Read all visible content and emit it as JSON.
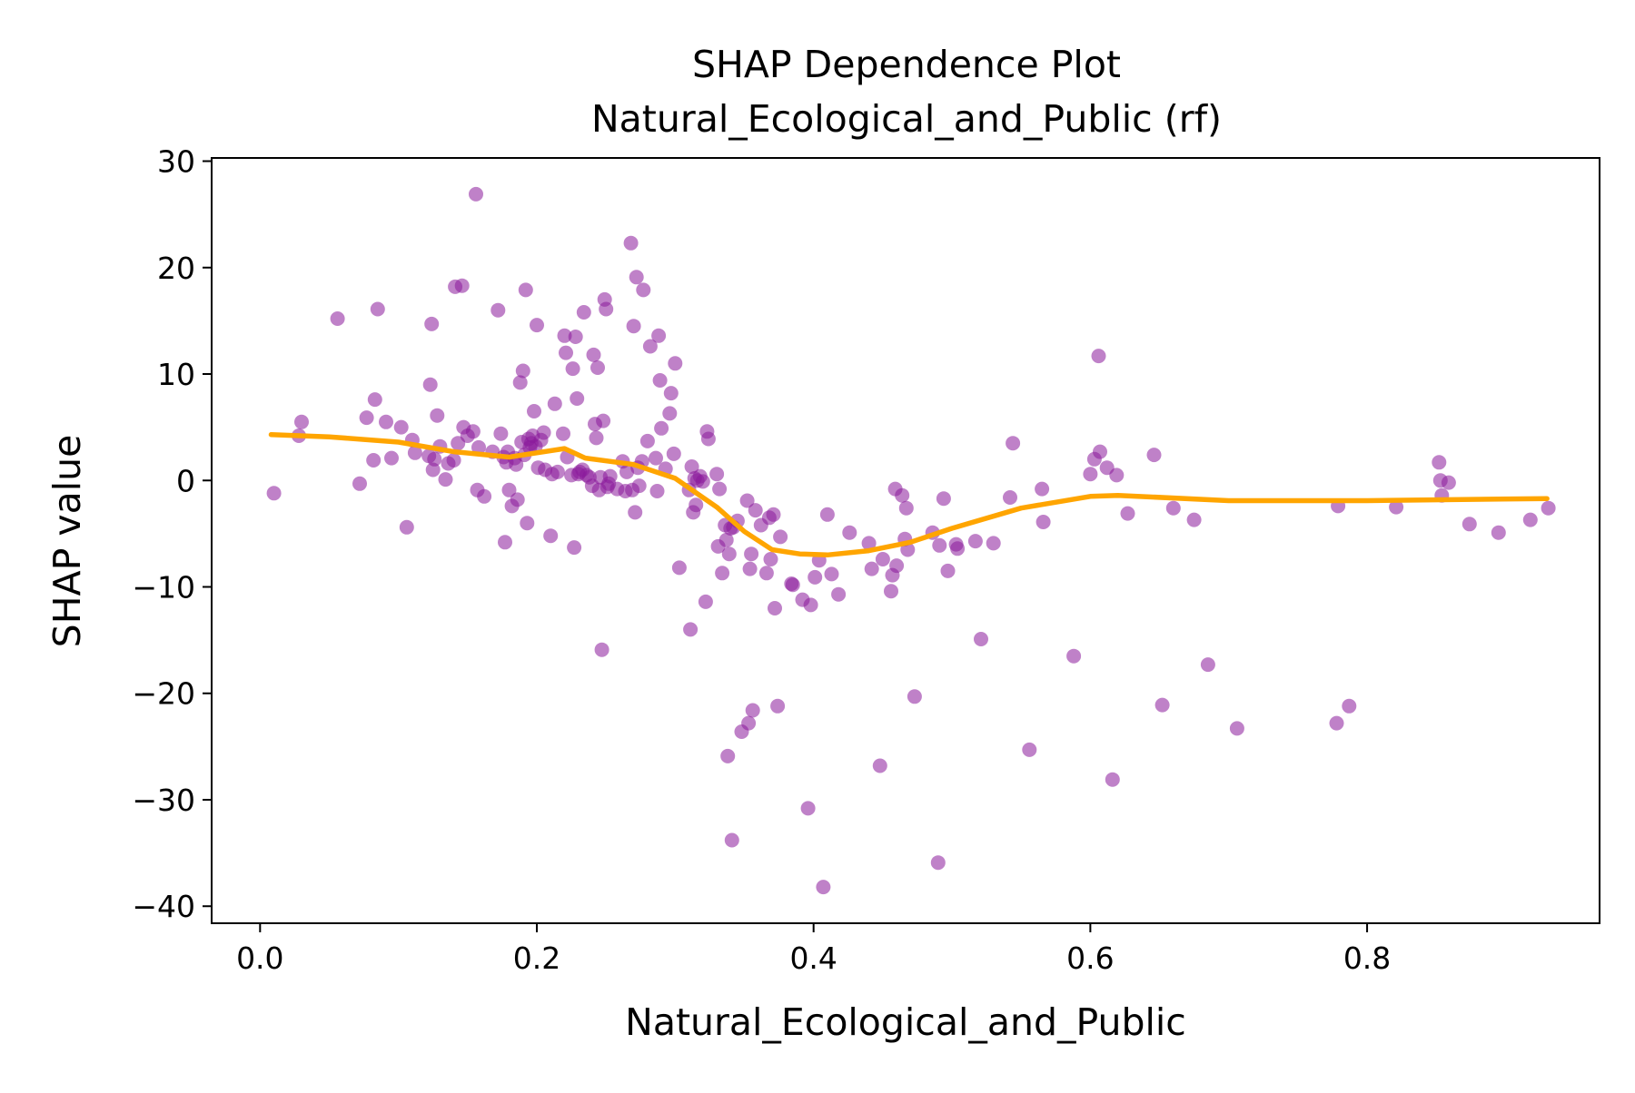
{
  "chart_data": {
    "type": "scatter",
    "title": "SHAP Dependence Plot",
    "subtitle": "Natural_Ecological_and_Public (rf)",
    "xlabel": "Natural_Ecological_and_Public",
    "ylabel": "SHAP value",
    "xlim": [
      -0.035,
      0.968
    ],
    "ylim": [
      -41.6,
      30.3
    ],
    "xticks": [
      0.0,
      0.2,
      0.4,
      0.6,
      0.8
    ],
    "xtick_labels": [
      "0.0",
      "0.2",
      "0.4",
      "0.6",
      "0.8"
    ],
    "yticks": [
      30,
      20,
      10,
      0,
      -10,
      -20,
      -30,
      -40
    ],
    "ytick_labels": [
      "30",
      "20",
      "10",
      "0",
      "−10",
      "−20",
      "−30",
      "−40"
    ],
    "grid": false,
    "legend": "none",
    "colors": {
      "points": "#8b1a9b",
      "trend": "#ffa500",
      "axes": "#000000"
    },
    "series": [
      {
        "kind": "points",
        "points": [
          [
            0.01,
            -1.2
          ],
          [
            0.028,
            4.2
          ],
          [
            0.03,
            5.5
          ],
          [
            0.056,
            15.2
          ],
          [
            0.072,
            -0.3
          ],
          [
            0.077,
            5.9
          ],
          [
            0.082,
            1.9
          ],
          [
            0.083,
            7.6
          ],
          [
            0.085,
            16.1
          ],
          [
            0.091,
            5.5
          ],
          [
            0.095,
            2.1
          ],
          [
            0.102,
            5.0
          ],
          [
            0.106,
            -4.4
          ],
          [
            0.11,
            3.8
          ],
          [
            0.112,
            2.6
          ],
          [
            0.122,
            2.3
          ],
          [
            0.123,
            9.0
          ],
          [
            0.124,
            14.7
          ],
          [
            0.125,
            1.0
          ],
          [
            0.126,
            2.0
          ],
          [
            0.128,
            6.1
          ],
          [
            0.13,
            3.2
          ],
          [
            0.134,
            0.1
          ],
          [
            0.136,
            1.6
          ],
          [
            0.14,
            1.9
          ],
          [
            0.141,
            18.2
          ],
          [
            0.143,
            3.5
          ],
          [
            0.146,
            18.3
          ],
          [
            0.147,
            5.0
          ],
          [
            0.15,
            4.2
          ],
          [
            0.154,
            4.6
          ],
          [
            0.156,
            26.9
          ],
          [
            0.157,
            -0.9
          ],
          [
            0.158,
            3.1
          ],
          [
            0.162,
            -1.5
          ],
          [
            0.168,
            2.7
          ],
          [
            0.172,
            16.0
          ],
          [
            0.174,
            4.4
          ],
          [
            0.176,
            2.2
          ],
          [
            0.177,
            -5.8
          ],
          [
            0.178,
            1.7
          ],
          [
            0.179,
            2.7
          ],
          [
            0.18,
            -0.9
          ],
          [
            0.182,
            -2.4
          ],
          [
            0.184,
            2.1
          ],
          [
            0.185,
            1.5
          ],
          [
            0.186,
            -1.8
          ],
          [
            0.188,
            9.2
          ],
          [
            0.189,
            3.6
          ],
          [
            0.19,
            10.3
          ],
          [
            0.191,
            2.4
          ],
          [
            0.192,
            17.9
          ],
          [
            0.193,
            -4.0
          ],
          [
            0.194,
            3.9
          ],
          [
            0.195,
            3.1
          ],
          [
            0.196,
            3.5
          ],
          [
            0.197,
            4.2
          ],
          [
            0.198,
            6.5
          ],
          [
            0.199,
            3.2
          ],
          [
            0.2,
            14.6
          ],
          [
            0.201,
            1.2
          ],
          [
            0.203,
            3.8
          ],
          [
            0.205,
            4.5
          ],
          [
            0.206,
            1.0
          ],
          [
            0.21,
            -5.2
          ],
          [
            0.211,
            0.6
          ],
          [
            0.213,
            7.2
          ],
          [
            0.215,
            0.8
          ],
          [
            0.219,
            4.4
          ],
          [
            0.22,
            13.6
          ],
          [
            0.221,
            12.0
          ],
          [
            0.222,
            2.2
          ],
          [
            0.225,
            0.5
          ],
          [
            0.226,
            10.5
          ],
          [
            0.227,
            -6.3
          ],
          [
            0.228,
            13.5
          ],
          [
            0.229,
            7.7
          ],
          [
            0.23,
            0.6
          ],
          [
            0.231,
            0.8
          ],
          [
            0.233,
            1.0
          ],
          [
            0.234,
            15.8
          ],
          [
            0.236,
            0.5
          ],
          [
            0.238,
            0.3
          ],
          [
            0.24,
            -0.5
          ],
          [
            0.241,
            11.8
          ],
          [
            0.242,
            5.3
          ],
          [
            0.243,
            4.0
          ],
          [
            0.244,
            10.6
          ],
          [
            0.245,
            -0.9
          ],
          [
            0.246,
            0.3
          ],
          [
            0.247,
            -15.9
          ],
          [
            0.248,
            5.6
          ],
          [
            0.249,
            17.0
          ],
          [
            0.25,
            16.1
          ],
          [
            0.251,
            -0.6
          ],
          [
            0.252,
            -0.3
          ],
          [
            0.253,
            0.4
          ],
          [
            0.258,
            -0.8
          ],
          [
            0.262,
            1.8
          ],
          [
            0.264,
            -1.0
          ],
          [
            0.265,
            0.8
          ],
          [
            0.268,
            22.3
          ],
          [
            0.269,
            -0.9
          ],
          [
            0.27,
            14.5
          ],
          [
            0.271,
            -3.0
          ],
          [
            0.272,
            19.1
          ],
          [
            0.273,
            1.2
          ],
          [
            0.274,
            -0.5
          ],
          [
            0.276,
            1.8
          ],
          [
            0.277,
            17.9
          ],
          [
            0.28,
            3.7
          ],
          [
            0.282,
            12.6
          ],
          [
            0.286,
            2.1
          ],
          [
            0.287,
            -1.0
          ],
          [
            0.288,
            13.6
          ],
          [
            0.289,
            9.4
          ],
          [
            0.29,
            4.9
          ],
          [
            0.293,
            1.1
          ],
          [
            0.296,
            6.3
          ],
          [
            0.297,
            8.2
          ],
          [
            0.299,
            2.5
          ],
          [
            0.3,
            11.0
          ],
          [
            0.303,
            -8.2
          ],
          [
            0.31,
            -0.9
          ],
          [
            0.311,
            -14.0
          ],
          [
            0.312,
            1.3
          ],
          [
            0.313,
            -3.0
          ],
          [
            0.314,
            0.2
          ],
          [
            0.315,
            -2.3
          ],
          [
            0.316,
            0.0
          ],
          [
            0.318,
            0.4
          ],
          [
            0.32,
            -0.1
          ],
          [
            0.322,
            -11.4
          ],
          [
            0.323,
            4.6
          ],
          [
            0.324,
            3.9
          ],
          [
            0.33,
            0.6
          ],
          [
            0.331,
            -6.2
          ],
          [
            0.332,
            -0.8
          ],
          [
            0.334,
            -8.7
          ],
          [
            0.336,
            -4.2
          ],
          [
            0.337,
            -5.6
          ],
          [
            0.338,
            -25.9
          ],
          [
            0.339,
            -6.9
          ],
          [
            0.34,
            -4.5
          ],
          [
            0.341,
            -33.8
          ],
          [
            0.342,
            -4.4
          ],
          [
            0.345,
            -3.8
          ],
          [
            0.348,
            -23.6
          ],
          [
            0.352,
            -1.9
          ],
          [
            0.353,
            -22.8
          ],
          [
            0.354,
            -8.3
          ],
          [
            0.355,
            -6.9
          ],
          [
            0.356,
            -21.6
          ],
          [
            0.358,
            -2.8
          ],
          [
            0.362,
            -4.2
          ],
          [
            0.366,
            -8.7
          ],
          [
            0.368,
            -3.5
          ],
          [
            0.369,
            -7.4
          ],
          [
            0.371,
            -3.2
          ],
          [
            0.372,
            -12.0
          ],
          [
            0.374,
            -21.2
          ],
          [
            0.376,
            -5.3
          ],
          [
            0.384,
            -9.7
          ],
          [
            0.385,
            -9.8
          ],
          [
            0.392,
            -11.2
          ],
          [
            0.396,
            -30.8
          ],
          [
            0.398,
            -11.7
          ],
          [
            0.401,
            -9.1
          ],
          [
            0.404,
            -7.5
          ],
          [
            0.407,
            -38.2
          ],
          [
            0.41,
            -3.2
          ],
          [
            0.413,
            -8.8
          ],
          [
            0.418,
            -10.7
          ],
          [
            0.426,
            -4.9
          ],
          [
            0.44,
            -5.9
          ],
          [
            0.442,
            -8.3
          ],
          [
            0.448,
            -26.8
          ],
          [
            0.45,
            -7.4
          ],
          [
            0.456,
            -10.4
          ],
          [
            0.457,
            -8.9
          ],
          [
            0.459,
            -0.8
          ],
          [
            0.46,
            -8.0
          ],
          [
            0.464,
            -1.4
          ],
          [
            0.466,
            -5.5
          ],
          [
            0.467,
            -2.6
          ],
          [
            0.468,
            -6.5
          ],
          [
            0.473,
            -20.3
          ],
          [
            0.486,
            -4.9
          ],
          [
            0.49,
            -35.9
          ],
          [
            0.491,
            -6.1
          ],
          [
            0.494,
            -1.7
          ],
          [
            0.497,
            -8.5
          ],
          [
            0.503,
            -6.0
          ],
          [
            0.504,
            -6.4
          ],
          [
            0.517,
            -5.7
          ],
          [
            0.521,
            -14.9
          ],
          [
            0.53,
            -5.9
          ],
          [
            0.542,
            -1.6
          ],
          [
            0.544,
            3.5
          ],
          [
            0.556,
            -25.3
          ],
          [
            0.565,
            -0.8
          ],
          [
            0.566,
            -3.9
          ],
          [
            0.588,
            -16.5
          ],
          [
            0.6,
            0.6
          ],
          [
            0.603,
            2.0
          ],
          [
            0.606,
            11.7
          ],
          [
            0.607,
            2.7
          ],
          [
            0.612,
            1.2
          ],
          [
            0.616,
            -28.1
          ],
          [
            0.619,
            0.5
          ],
          [
            0.627,
            -3.1
          ],
          [
            0.646,
            2.4
          ],
          [
            0.652,
            -21.1
          ],
          [
            0.66,
            -2.6
          ],
          [
            0.675,
            -3.7
          ],
          [
            0.685,
            -17.3
          ],
          [
            0.706,
            -23.3
          ],
          [
            0.778,
            -22.8
          ],
          [
            0.779,
            -2.4
          ],
          [
            0.787,
            -21.2
          ],
          [
            0.821,
            -2.5
          ],
          [
            0.852,
            1.7
          ],
          [
            0.853,
            0.0
          ],
          [
            0.854,
            -1.4
          ],
          [
            0.859,
            -0.2
          ],
          [
            0.874,
            -4.1
          ],
          [
            0.895,
            -4.9
          ],
          [
            0.918,
            -3.7
          ],
          [
            0.931,
            -2.6
          ]
        ]
      },
      {
        "kind": "trend-line",
        "points": [
          [
            0.008,
            4.3
          ],
          [
            0.05,
            4.1
          ],
          [
            0.1,
            3.6
          ],
          [
            0.14,
            2.7
          ],
          [
            0.18,
            2.2
          ],
          [
            0.2,
            2.6
          ],
          [
            0.22,
            3.0
          ],
          [
            0.235,
            2.1
          ],
          [
            0.27,
            1.5
          ],
          [
            0.3,
            0.2
          ],
          [
            0.33,
            -2.5
          ],
          [
            0.35,
            -4.8
          ],
          [
            0.37,
            -6.5
          ],
          [
            0.39,
            -6.9
          ],
          [
            0.41,
            -7.0
          ],
          [
            0.44,
            -6.6
          ],
          [
            0.47,
            -5.8
          ],
          [
            0.5,
            -4.5
          ],
          [
            0.55,
            -2.6
          ],
          [
            0.6,
            -1.5
          ],
          [
            0.62,
            -1.4
          ],
          [
            0.7,
            -1.9
          ],
          [
            0.8,
            -1.9
          ],
          [
            0.93,
            -1.7
          ]
        ]
      }
    ]
  }
}
